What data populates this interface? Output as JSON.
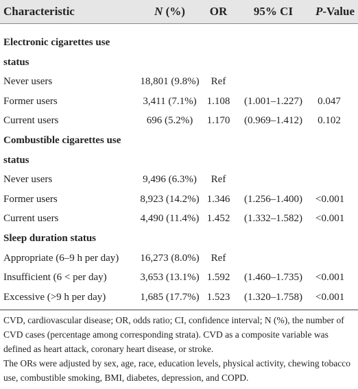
{
  "table": {
    "header": [
      {
        "text": "Characteristic"
      },
      {
        "italic": "N",
        "text": " (%)"
      },
      {
        "text": "OR"
      },
      {
        "text": "95% CI"
      },
      {
        "italic": "P",
        "text": "-Value"
      }
    ],
    "sections": [
      {
        "title": "Electronic cigarettes use status",
        "rows": [
          [
            "Never users",
            "18,801 (9.8%)",
            "Ref"
          ],
          [
            "Former users",
            "3,411 (7.1%)",
            "1.108",
            "(1.001–1.227)",
            "0.047"
          ],
          [
            "Current users",
            "696 (5.2%)",
            "1.170",
            "(0.969–1.412)",
            "0.102"
          ]
        ]
      },
      {
        "title": "Combustible cigarettes use status",
        "rows": [
          [
            "Never users",
            "9,496 (6.3%)",
            "Ref"
          ],
          [
            "Former users",
            "8,923 (14.2%)",
            "1.346",
            "(1.256–1.400)",
            "<0.001"
          ],
          [
            "Current users",
            "4,490 (11.4%)",
            "1.452",
            "(1.332–1.582)",
            "<0.001"
          ]
        ]
      },
      {
        "title": "Sleep duration status",
        "rows": [
          [
            "Appropriate (6–9 h per day)",
            "16,273 (8.0%)",
            "Ref"
          ],
          [
            "Insufficient (6 < per day)",
            "3,653 (13.1%)",
            "1.592",
            "(1.460–1.735)",
            "<0.001"
          ],
          [
            "Excessive (>9 h per day)",
            "1,685 (17.7%)",
            "1.523",
            "(1.320–1.758)",
            "<0.001"
          ]
        ]
      }
    ],
    "footnotes": [
      "CVD, cardiovascular disease; OR, odds ratio; CI, confidence interval; N (%), the number of CVD cases (percentage among corresponding strata). CVD as a composite variable was defined as heart attack, coronary heart disease, or stroke.",
      "The ORs were adjusted by sex, age, race, education levels, physical activity, chewing tobacco use, combustible smoking, BMI, diabetes, depression, and COPD."
    ]
  }
}
